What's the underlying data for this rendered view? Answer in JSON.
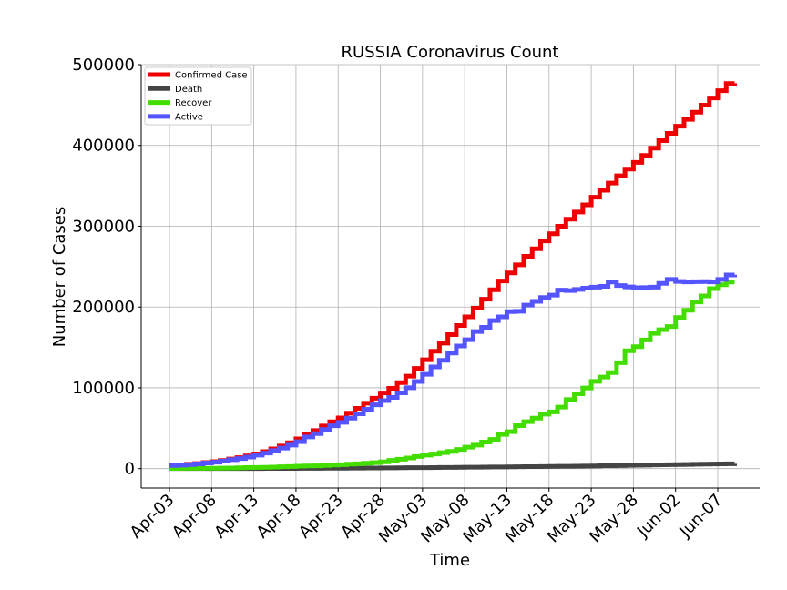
{
  "chart_data": {
    "type": "line",
    "title": "RUSSIA Coronavirus Count",
    "xlabel": "Time",
    "ylabel": "Number of Cases",
    "x_dates": [
      "2020-04-03",
      "2020-04-04",
      "2020-04-05",
      "2020-04-06",
      "2020-04-07",
      "2020-04-08",
      "2020-04-09",
      "2020-04-10",
      "2020-04-11",
      "2020-04-12",
      "2020-04-13",
      "2020-04-14",
      "2020-04-15",
      "2020-04-16",
      "2020-04-17",
      "2020-04-18",
      "2020-04-19",
      "2020-04-20",
      "2020-04-21",
      "2020-04-22",
      "2020-04-23",
      "2020-04-24",
      "2020-04-25",
      "2020-04-26",
      "2020-04-27",
      "2020-04-28",
      "2020-04-29",
      "2020-04-30",
      "2020-05-01",
      "2020-05-02",
      "2020-05-03",
      "2020-05-04",
      "2020-05-05",
      "2020-05-06",
      "2020-05-07",
      "2020-05-08",
      "2020-05-09",
      "2020-05-10",
      "2020-05-11",
      "2020-05-12",
      "2020-05-13",
      "2020-05-14",
      "2020-05-15",
      "2020-05-16",
      "2020-05-17",
      "2020-05-18",
      "2020-05-19",
      "2020-05-20",
      "2020-05-21",
      "2020-05-22",
      "2020-05-23",
      "2020-05-24",
      "2020-05-25",
      "2020-05-26",
      "2020-05-27",
      "2020-05-28",
      "2020-05-29",
      "2020-05-30",
      "2020-05-31",
      "2020-06-01",
      "2020-06-02",
      "2020-06-03",
      "2020-06-04",
      "2020-06-05",
      "2020-06-06",
      "2020-06-07",
      "2020-06-08",
      "2020-06-09"
    ],
    "x_tick_labels": [
      "Apr-03",
      "Apr-08",
      "Apr-13",
      "Apr-18",
      "Apr-23",
      "Apr-28",
      "May-03",
      "May-08",
      "May-13",
      "May-18",
      "May-23",
      "May-28",
      "Jun-02",
      "Jun-07"
    ],
    "x_tick_dates": [
      "2020-04-03",
      "2020-04-08",
      "2020-04-13",
      "2020-04-18",
      "2020-04-23",
      "2020-04-28",
      "2020-05-03",
      "2020-05-08",
      "2020-05-13",
      "2020-05-18",
      "2020-05-23",
      "2020-05-28",
      "2020-06-02",
      "2020-06-07"
    ],
    "xlim": [
      "2020-04-00",
      "2020-06-10"
    ],
    "y_ticks": [
      0,
      100000,
      200000,
      300000,
      400000,
      500000
    ],
    "y_tick_labels": [
      "0",
      "100000",
      "200000",
      "300000",
      "400000",
      "500000"
    ],
    "ylim": [
      -24000,
      500000
    ],
    "grid": true,
    "legend_position": "top-left",
    "series": [
      {
        "name": "Confirmed Case",
        "color": "#ee0000",
        "values": [
          4149,
          4731,
          5389,
          6343,
          7497,
          8672,
          10131,
          11917,
          13584,
          15770,
          18328,
          21102,
          24490,
          27938,
          32008,
          36793,
          42853,
          47121,
          52763,
          57999,
          62773,
          68622,
          74588,
          80949,
          87147,
          93558,
          99399,
          106498,
          114431,
          124054,
          134687,
          145268,
          155370,
          165929,
          177160,
          187859,
          198676,
          209688,
          221344,
          232243,
          242271,
          252245,
          262843,
          272043,
          281752,
          290678,
          299941,
          308705,
          317554,
          326448,
          335882,
          344481,
          353427,
          362342,
          370680,
          379051,
          387623,
          396575,
          405843,
          414878,
          423741,
          432277,
          441108,
          449834,
          458689,
          467673,
          476658,
          477000
        ]
      },
      {
        "name": "Death",
        "color": "#444444",
        "values": [
          34,
          43,
          47,
          63,
          58,
          63,
          76,
          94,
          106,
          130,
          148,
          170,
          198,
          232,
          273,
          313,
          361,
          405,
          456,
          513,
          555,
          615,
          681,
          747,
          794,
          867,
          972,
          1073,
          1169,
          1222,
          1280,
          1356,
          1451,
          1537,
          1625,
          1723,
          1827,
          1915,
          2009,
          2116,
          2212,
          2305,
          2418,
          2537,
          2631,
          2722,
          2837,
          2972,
          3099,
          3249,
          3388,
          3541,
          3633,
          3807,
          3968,
          4142,
          4374,
          4555,
          4693,
          4855,
          5037,
          5215,
          5384,
          5520,
          5725,
          5859,
          5971,
          6000
        ]
      },
      {
        "name": "Recover",
        "color": "#44dd00",
        "values": [
          281,
          333,
          355,
          406,
          494,
          580,
          698,
          794,
          1045,
          1291,
          1470,
          1694,
          1986,
          2304,
          2590,
          3108,
          3291,
          3446,
          3873,
          4420,
          4891,
          5568,
          6011,
          6767,
          7346,
          8456,
          10286,
          11619,
          13220,
          15013,
          16639,
          18095,
          19865,
          21327,
          23803,
          26608,
          29145,
          32907,
          36192,
          42300,
          45789,
          53250,
          58126,
          62491,
          67373,
          70209,
          76130,
          85392,
          92681,
          99825,
          107936,
          113299,
          118798,
          131129,
          145823,
          150993,
          159257,
          167469,
          171883,
          175877,
          186985,
          195957,
          206340,
          213839,
          222806,
          227641,
          231000,
          231000
        ]
      },
      {
        "name": "Active",
        "color": "#5555ff",
        "values": [
          3834,
          4355,
          4987,
          5874,
          6945,
          8029,
          9357,
          11029,
          12433,
          14349,
          16710,
          19238,
          22306,
          25402,
          29145,
          33372,
          39201,
          43270,
          48434,
          53066,
          57327,
          62439,
          67896,
          73435,
          79007,
          84235,
          88141,
          93806,
          100042,
          107819,
          116768,
          125817,
          134054,
          143065,
          151732,
          159528,
          169704,
          174866,
          183143,
          187827,
          194270,
          194690,
          202299,
          207015,
          211748,
          214747,
          220974,
          220341,
          221774,
          223374,
          224558,
          225641,
          231000,
          226576,
          224889,
          223916,
          223992,
          224551,
          229267,
          234146,
          231719,
          231105,
          231384,
          231475,
          231158,
          234173,
          239679,
          240000
        ]
      }
    ]
  }
}
